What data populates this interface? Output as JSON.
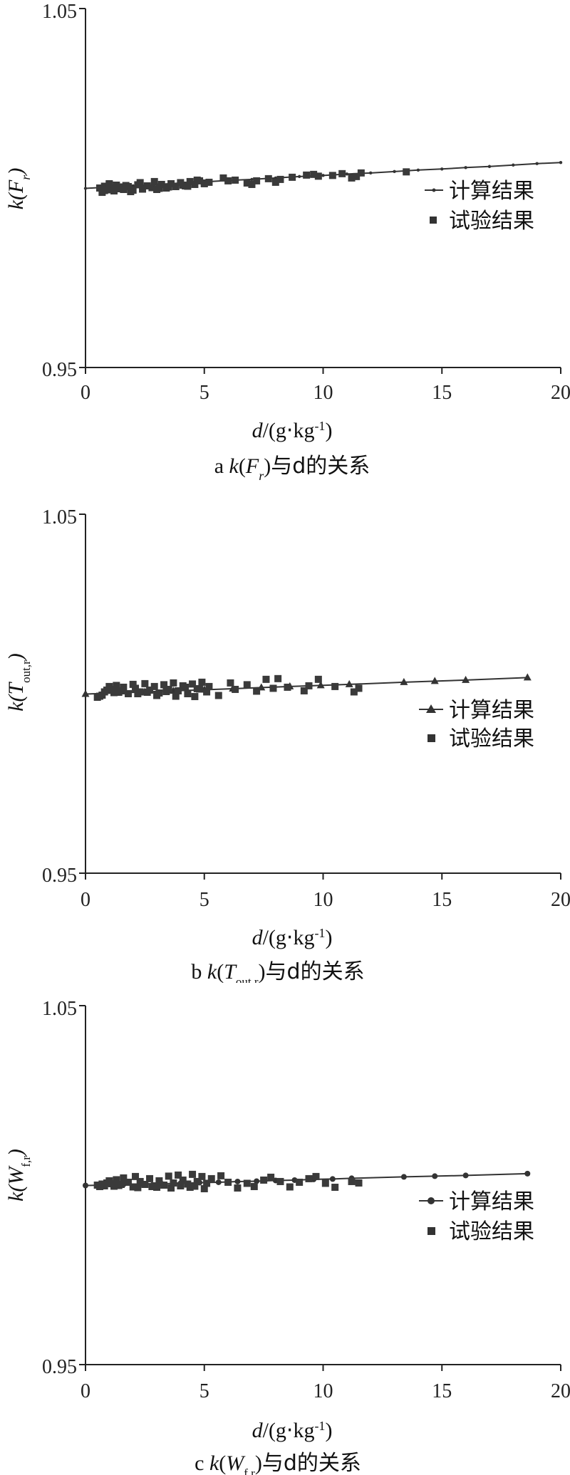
{
  "chart_data": [
    {
      "type": "scatter",
      "ylabel": "k(F_r)",
      "xlabel": "d/(g·kg^-1)",
      "caption": "a k(F_r)与d的关系",
      "caption_prefix": "a ",
      "caption_suffix": "与d的关系",
      "xlim": [
        0,
        20
      ],
      "ylim": [
        0.95,
        1.05
      ],
      "xticks": [
        "0",
        "5",
        "10",
        "15",
        "20"
      ],
      "yticks": [
        "0.95",
        "1.05"
      ],
      "grid": false,
      "legend_position": "right-middle",
      "series": [
        {
          "name": "计算结果",
          "marker": "dot",
          "line": true,
          "x": [
            0,
            1,
            2,
            3,
            4,
            5,
            6,
            7,
            8,
            9,
            10,
            11,
            12,
            13,
            14,
            15,
            16,
            17,
            18,
            19,
            20
          ],
          "y": [
            0.9999,
            1.0003,
            1.0006,
            1.001,
            1.0014,
            1.0017,
            1.0021,
            1.0024,
            1.0028,
            1.0032,
            1.0035,
            1.0039,
            1.0042,
            1.0046,
            1.005,
            1.0053,
            1.0057,
            1.006,
            1.0064,
            1.0068,
            1.0071
          ]
        },
        {
          "name": "试验结果",
          "marker": "square",
          "x": [
            0.6,
            0.7,
            0.8,
            0.9,
            1.0,
            1.1,
            1.2,
            1.3,
            1.4,
            1.5,
            1.6,
            1.8,
            2.0,
            2.2,
            2.4,
            2.6,
            2.8,
            3.0,
            3.2,
            3.4,
            3.6,
            3.8,
            4.0,
            4.2,
            4.4,
            4.6,
            4.8,
            5.0,
            1.0,
            1.7,
            2.3,
            2.9,
            3.5,
            4.1,
            4.7,
            5.2,
            5.8,
            6.3,
            6.8,
            7.2,
            7.7,
            8.2,
            8.7,
            9.3,
            9.6,
            10.4,
            10.8,
            11.2,
            11.6,
            13.5,
            0.8,
            1.9,
            3.1,
            4.3,
            5.0,
            6.0,
            7.0,
            8.0,
            9.8,
            11.4
          ],
          "y": [
            1.0,
            0.9988,
            1.0005,
            0.9995,
            1.001,
            1.0,
            0.9992,
            1.0008,
            0.9998,
            1.0003,
            0.9996,
            1.0004,
            0.9994,
            1.0009,
            0.9997,
            1.0006,
            1.0001,
            0.9996,
            1.001,
            1.0,
            1.0012,
            1.0004,
            1.0015,
            1.0006,
            1.0018,
            1.001,
            1.002,
            1.0014,
            1.0012,
            1.0007,
            1.0015,
            1.0018,
            1.0003,
            1.0008,
            1.0022,
            1.0016,
            1.0028,
            1.0022,
            1.0014,
            1.002,
            1.0026,
            1.0024,
            1.003,
            1.0036,
            1.0038,
            1.0035,
            1.004,
            1.0028,
            1.0042,
            1.0045,
            0.9993,
            0.999,
            0.9999,
            1.0005,
            1.0012,
            1.002,
            1.001,
            1.0016,
            1.0033,
            1.0032
          ]
        }
      ]
    },
    {
      "type": "scatter",
      "ylabel": "k(T_out,r)",
      "xlabel": "d/(g·kg^-1)",
      "caption": "b k(T_out,r)与d的关系",
      "caption_prefix": "b ",
      "caption_suffix": "与d的关系",
      "xlim": [
        0,
        20
      ],
      "ylim": [
        0.95,
        1.05
      ],
      "xticks": [
        "0",
        "5",
        "10",
        "15",
        "20"
      ],
      "yticks": [
        "0.95",
        "1.05"
      ],
      "grid": false,
      "legend_position": "right-middle",
      "series": [
        {
          "name": "计算结果",
          "marker": "triangle",
          "line": true,
          "x": [
            0,
            1.3,
            2.5,
            3.7,
            5.0,
            6.2,
            7.4,
            8.6,
            9.9,
            11.1,
            13.4,
            14.7,
            16.0,
            18.6
          ],
          "y": [
            0.9999,
            1.0002,
            1.0005,
            1.0008,
            1.0011,
            1.0014,
            1.0017,
            1.002,
            1.0023,
            1.0026,
            1.0032,
            1.0035,
            1.0038,
            1.0045
          ]
        },
        {
          "name": "试验结果",
          "marker": "square",
          "x": [
            0.5,
            0.6,
            0.7,
            0.8,
            0.9,
            1.0,
            1.1,
            1.2,
            1.3,
            1.5,
            1.6,
            1.8,
            2.0,
            2.1,
            2.3,
            2.5,
            2.7,
            2.9,
            3.1,
            3.3,
            3.5,
            3.7,
            3.9,
            4.1,
            4.3,
            4.5,
            4.7,
            4.9,
            5.1,
            5.2,
            5.6,
            6.1,
            6.3,
            6.8,
            7.2,
            7.6,
            7.9,
            8.1,
            8.5,
            9.2,
            9.4,
            9.8,
            10.5,
            11.3,
            11.5,
            2.2,
            3.0,
            3.8,
            4.6,
            1.4,
            2.6,
            3.4,
            4.2,
            4.8
          ],
          "y": [
            0.999,
            0.9993,
            0.9996,
            1.0005,
            1.001,
            1.002,
            1.0012,
            1.0003,
            1.0023,
            1.0008,
            1.0018,
            1.0,
            1.0026,
            1.0015,
            1.0005,
            1.0028,
            1.001,
            1.002,
            1.0002,
            1.0025,
            1.0012,
            1.003,
            1.0008,
            1.0022,
            1.0,
            1.0027,
            1.0014,
            1.0032,
            1.0005,
            1.002,
            0.9995,
            1.003,
            1.0012,
            1.0025,
            1.0007,
            1.004,
            1.0015,
            1.0042,
            1.0018,
            1.0008,
            1.0022,
            1.004,
            1.002,
            1.0005,
            1.0015,
            1.0,
            0.9995,
            0.9993,
            0.9992,
            1.0004,
            1.0004,
            1.0006,
            1.0018,
            1.0013
          ]
        }
      ]
    },
    {
      "type": "scatter",
      "ylabel": "k(W_f,r)",
      "xlabel": "d/(g·kg^-1)",
      "caption": "c k(W_f,r)与d的关系",
      "caption_prefix": "c ",
      "caption_suffix": "与d的关系",
      "xlim": [
        0,
        20
      ],
      "ylim": [
        0.95,
        1.05
      ],
      "xticks": [
        "0",
        "5",
        "10",
        "15",
        "20"
      ],
      "yticks": [
        "0.95",
        "1.05"
      ],
      "grid": false,
      "legend_position": "right-middle",
      "series": [
        {
          "name": "计算结果",
          "marker": "circle",
          "line": true,
          "x": [
            0,
            0.8,
            1.6,
            2.4,
            3.2,
            4.0,
            4.8,
            5.6,
            6.4,
            7.2,
            8.0,
            8.8,
            9.6,
            10.4,
            11.2,
            13.4,
            14.7,
            16.0,
            18.6
          ],
          "y": [
            0.9999,
            1.0,
            1.0002,
            1.0003,
            1.0004,
            1.0005,
            1.0007,
            1.0008,
            1.001,
            1.0011,
            1.0013,
            1.0014,
            1.0016,
            1.0017,
            1.0019,
            1.0023,
            1.0025,
            1.0027,
            1.0032
          ]
        },
        {
          "name": "试验结果",
          "marker": "square",
          "x": [
            0.5,
            0.6,
            0.7,
            0.8,
            0.9,
            1.0,
            1.1,
            1.2,
            1.3,
            1.5,
            1.6,
            1.8,
            2.0,
            2.1,
            2.3,
            2.5,
            2.7,
            2.9,
            3.1,
            3.3,
            3.5,
            3.7,
            3.9,
            4.1,
            4.3,
            4.5,
            4.7,
            4.9,
            5.1,
            5.3,
            5.7,
            6.0,
            6.4,
            6.8,
            7.1,
            7.5,
            7.8,
            8.2,
            8.6,
            9.0,
            9.4,
            9.7,
            10.1,
            10.5,
            11.2,
            11.5,
            2.8,
            3.6,
            4.4,
            5.0,
            1.4,
            2.2,
            3.0,
            4.0,
            4.6
          ],
          "y": [
            1.0,
            0.9996,
            1.0003,
            0.9998,
            1.0006,
            1.0012,
            1.0004,
            0.9997,
            1.0015,
            1.0002,
            1.002,
            1.0008,
            0.9995,
            1.0024,
            1.001,
            1.0002,
            1.0018,
            0.9998,
            1.0012,
            1.0,
            1.0025,
            1.0006,
            1.0028,
            1.0014,
            1.0003,
            1.003,
            1.001,
            1.0024,
            1.0005,
            1.0018,
            1.0026,
            1.0008,
            0.9992,
            1.0005,
            0.9996,
            1.0014,
            1.0022,
            1.001,
            0.9995,
            1.0008,
            1.0018,
            1.0024,
            1.0005,
            0.9994,
            1.001,
            1.0006,
            0.9996,
            0.9992,
            0.9994,
            0.999,
            0.9999,
            0.9993,
            0.9994,
            0.9998,
            0.9997
          ]
        }
      ]
    }
  ]
}
